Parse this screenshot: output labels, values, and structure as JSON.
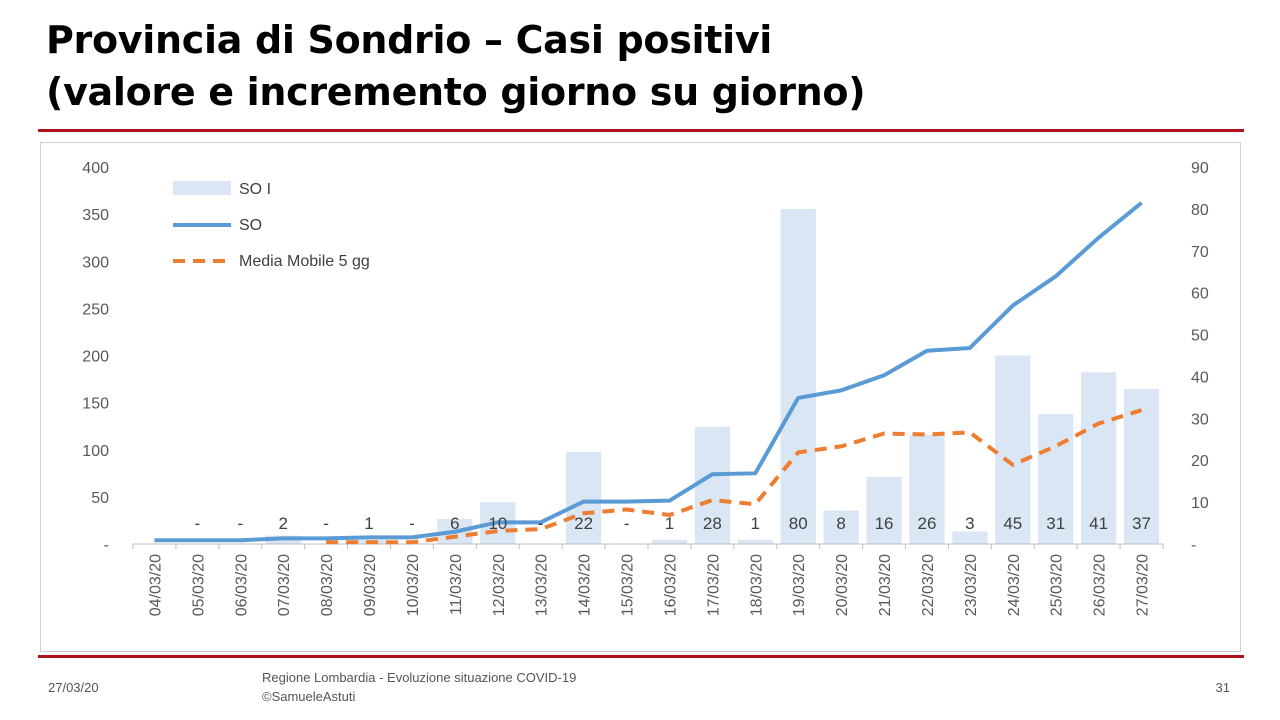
{
  "slide": {
    "title_line1": "Provincia di Sondrio – Casi positivi",
    "title_line2": "(valore e incremento giorno su giorno)"
  },
  "footer": {
    "date": "27/03/20",
    "source_line1": "Regione Lombardia - Evoluzione situazione COVID-19",
    "source_line2": "©SamueleAstuti",
    "page_number": "31"
  },
  "colors": {
    "bars": "#dae6f4",
    "line": "#5b9bd5",
    "moving_average": "#ed7d31",
    "rule": "#b0121b"
  },
  "chart_data": {
    "type": "bar",
    "categories": [
      "04/03/20",
      "05/03/20",
      "06/03/20",
      "07/03/20",
      "08/03/20",
      "09/03/20",
      "10/03/20",
      "11/03/20",
      "12/03/20",
      "13/03/20",
      "14/03/20",
      "15/03/20",
      "16/03/20",
      "17/03/20",
      "18/03/20",
      "19/03/20",
      "20/03/20",
      "21/03/20",
      "22/03/20",
      "23/03/20",
      "24/03/20",
      "25/03/20",
      "26/03/20",
      "27/03/20"
    ],
    "series": [
      {
        "name": "SO I",
        "type": "bar",
        "axis": "right",
        "values": [
          0,
          0,
          0,
          2,
          0,
          1,
          0,
          6,
          10,
          0,
          22,
          0,
          1,
          28,
          1,
          80,
          8,
          16,
          26,
          3,
          45,
          31,
          41,
          37
        ],
        "labels": [
          "",
          "-",
          "-",
          "2",
          "-",
          "1",
          "-",
          "6",
          "10",
          "-",
          "22",
          "-",
          "1",
          "28",
          "1",
          "80",
          "8",
          "16",
          "26",
          "3",
          "45",
          "31",
          "41",
          "37"
        ]
      },
      {
        "name": "SO",
        "type": "line",
        "axis": "left",
        "values": [
          4,
          4,
          4,
          6,
          6,
          7,
          7,
          13,
          23,
          23,
          45,
          45,
          46,
          74,
          75,
          155,
          163,
          179,
          205,
          208,
          253,
          284,
          325,
          362
        ]
      },
      {
        "name": "Media Mobile 5 gg",
        "type": "line-dashed",
        "axis": "left",
        "values": [
          null,
          null,
          null,
          null,
          1.8,
          1.8,
          1.8,
          7.8,
          13.8,
          15.8,
          32.6,
          36.6,
          30.8,
          46.6,
          42.2,
          97.2,
          103.6,
          117.2,
          116.2,
          118.4,
          84,
          103.8,
          127.8,
          142
        ]
      }
    ],
    "y_left": {
      "min": 0,
      "max": 400,
      "ticks": [
        "-",
        "50",
        "100",
        "150",
        "200",
        "250",
        "300",
        "350",
        "400"
      ]
    },
    "y_right": {
      "min": 0,
      "max": 90,
      "ticks": [
        "-",
        "10",
        "20",
        "30",
        "40",
        "50",
        "60",
        "70",
        "80",
        "90"
      ]
    },
    "legend": {
      "placement": "top-left"
    },
    "grid": false
  }
}
